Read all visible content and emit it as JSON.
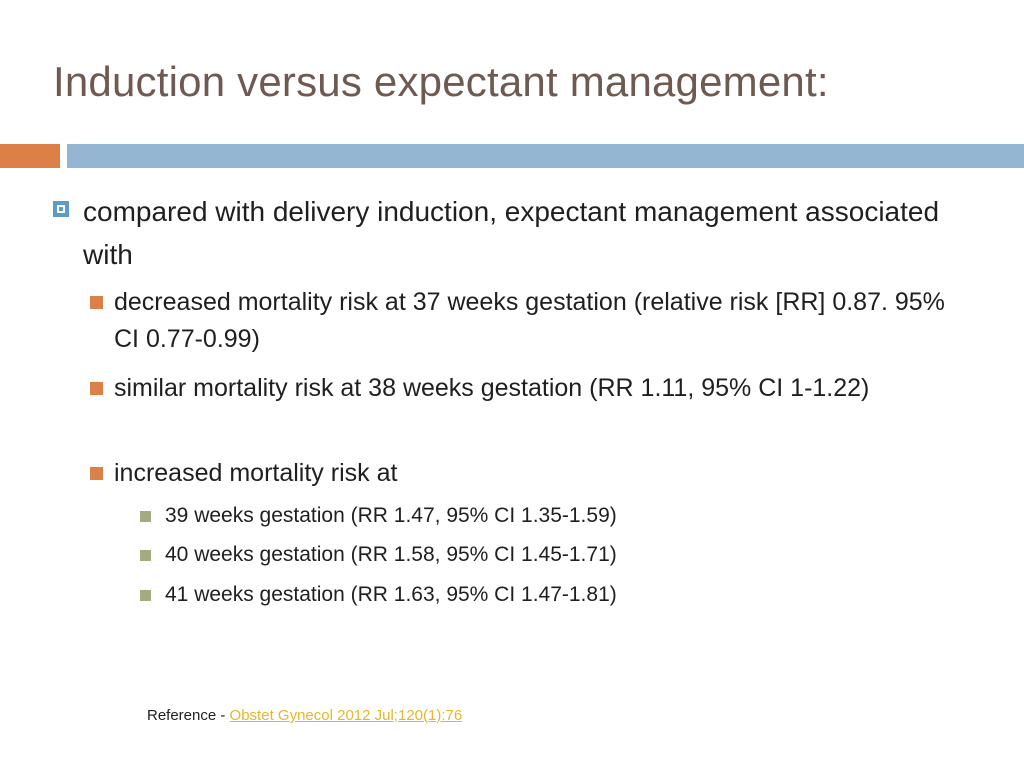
{
  "slide": {
    "title": "Induction versus expectant management:",
    "main_bullet": "compared with delivery induction, expectant management associated with",
    "sub_bullets": [
      "decreased mortality risk at 37 weeks gestation (relative risk [RR] 0.87. 95% CI 0.77-0.99)",
      "similar mortality risk at 38 weeks gestation (RR 1.11, 95% CI 1-1.22)",
      "increased mortality risk at"
    ],
    "sub_sub_bullets": [
      "39 weeks gestation (RR 1.47, 95% CI 1.35-1.59)",
      "40 weeks gestation (RR 1.58, 95% CI 1.45-1.71)",
      "41 weeks gestation (RR 1.63, 95% CI 1.47-1.81)"
    ],
    "reference": {
      "prefix": "Reference - ",
      "link_text": "Obstet Gynecol 2012 Jul;120(1):76"
    }
  },
  "colors": {
    "title": "#6e5a51",
    "accent_orange": "#dd8047",
    "accent_blue": "#94b6d2",
    "bullet_blue": "#5b9bc6",
    "bullet_green": "#a5ab81",
    "link": "#e6b729"
  },
  "icons": {
    "level1_bullet": "hollow-square-bullet-icon",
    "level2_bullet": "square-bullet-icon",
    "level3_bullet": "small-square-bullet-icon"
  }
}
